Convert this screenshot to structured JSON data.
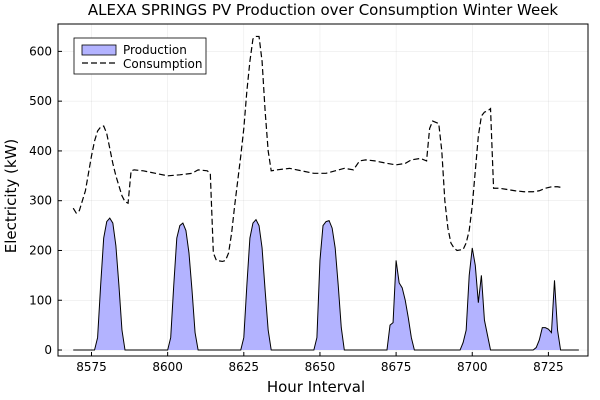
{
  "chart_data": {
    "type": "area",
    "title": "ALEXA SPRINGS PV Production over Consumption Winter Week",
    "xlabel": "Hour Interval",
    "ylabel": "Electricity (kW)",
    "xlim": [
      8564,
      8738
    ],
    "ylim": [
      -12,
      655
    ],
    "xticks": [
      8575,
      8600,
      8625,
      8650,
      8675,
      8700,
      8725
    ],
    "yticks": [
      0,
      100,
      200,
      300,
      400,
      500,
      600
    ],
    "grid": true,
    "legend_position": "top-left",
    "series": [
      {
        "name": "Production",
        "style": "filled-area",
        "color": "#b3b3ff",
        "points": [
          [
            8569,
            0
          ],
          [
            8576,
            0
          ],
          [
            8577,
            25
          ],
          [
            8578,
            130
          ],
          [
            8579,
            225
          ],
          [
            8580,
            258
          ],
          [
            8581,
            265
          ],
          [
            8582,
            255
          ],
          [
            8583,
            210
          ],
          [
            8584,
            130
          ],
          [
            8585,
            40
          ],
          [
            8586,
            0
          ],
          [
            8600,
            0
          ],
          [
            8601,
            25
          ],
          [
            8602,
            130
          ],
          [
            8603,
            225
          ],
          [
            8604,
            250
          ],
          [
            8605,
            255
          ],
          [
            8606,
            240
          ],
          [
            8607,
            195
          ],
          [
            8608,
            120
          ],
          [
            8609,
            35
          ],
          [
            8610,
            0
          ],
          [
            8624,
            0
          ],
          [
            8625,
            25
          ],
          [
            8626,
            130
          ],
          [
            8627,
            225
          ],
          [
            8628,
            255
          ],
          [
            8629,
            262
          ],
          [
            8630,
            250
          ],
          [
            8631,
            205
          ],
          [
            8632,
            120
          ],
          [
            8633,
            40
          ],
          [
            8634,
            0
          ],
          [
            8648,
            0
          ],
          [
            8649,
            25
          ],
          [
            8650,
            180
          ],
          [
            8651,
            250
          ],
          [
            8652,
            258
          ],
          [
            8653,
            260
          ],
          [
            8654,
            245
          ],
          [
            8655,
            205
          ],
          [
            8656,
            130
          ],
          [
            8657,
            45
          ],
          [
            8658,
            0
          ],
          [
            8672,
            0
          ],
          [
            8673,
            50
          ],
          [
            8674,
            55
          ],
          [
            8675,
            180
          ],
          [
            8676,
            135
          ],
          [
            8677,
            125
          ],
          [
            8678,
            100
          ],
          [
            8679,
            65
          ],
          [
            8680,
            25
          ],
          [
            8681,
            0
          ],
          [
            8696,
            0
          ],
          [
            8697,
            15
          ],
          [
            8698,
            40
          ],
          [
            8699,
            150
          ],
          [
            8700,
            205
          ],
          [
            8701,
            170
          ],
          [
            8702,
            95
          ],
          [
            8703,
            150
          ],
          [
            8704,
            60
          ],
          [
            8705,
            30
          ],
          [
            8706,
            0
          ],
          [
            8720,
            0
          ],
          [
            8721,
            5
          ],
          [
            8722,
            20
          ],
          [
            8723,
            45
          ],
          [
            8724,
            45
          ],
          [
            8725,
            42
          ],
          [
            8726,
            35
          ],
          [
            8727,
            140
          ],
          [
            8728,
            40
          ],
          [
            8729,
            0
          ],
          [
            8735,
            0
          ]
        ]
      },
      {
        "name": "Consumption",
        "style": "dashed-line",
        "color": "#000000",
        "points": [
          [
            8569,
            285
          ],
          [
            8570,
            275
          ],
          [
            8571,
            280
          ],
          [
            8572,
            300
          ],
          [
            8573,
            320
          ],
          [
            8574,
            355
          ],
          [
            8575,
            390
          ],
          [
            8576,
            420
          ],
          [
            8577,
            440
          ],
          [
            8578,
            448
          ],
          [
            8579,
            450
          ],
          [
            8580,
            435
          ],
          [
            8581,
            405
          ],
          [
            8582,
            375
          ],
          [
            8583,
            350
          ],
          [
            8584,
            330
          ],
          [
            8585,
            310
          ],
          [
            8586,
            298
          ],
          [
            8587,
            295
          ],
          [
            8588,
            360
          ],
          [
            8589,
            362
          ],
          [
            8592,
            360
          ],
          [
            8596,
            355
          ],
          [
            8600,
            350
          ],
          [
            8604,
            352
          ],
          [
            8608,
            355
          ],
          [
            8610,
            362
          ],
          [
            8613,
            360
          ],
          [
            8614,
            355
          ],
          [
            8615,
            195
          ],
          [
            8616,
            180
          ],
          [
            8618,
            178
          ],
          [
            8619,
            180
          ],
          [
            8620,
            195
          ],
          [
            8621,
            235
          ],
          [
            8622,
            290
          ],
          [
            8623,
            340
          ],
          [
            8624,
            390
          ],
          [
            8625,
            445
          ],
          [
            8626,
            520
          ],
          [
            8627,
            580
          ],
          [
            8628,
            625
          ],
          [
            8629,
            630
          ],
          [
            8630,
            630
          ],
          [
            8631,
            580
          ],
          [
            8632,
            480
          ],
          [
            8633,
            400
          ],
          [
            8634,
            360
          ],
          [
            8636,
            362
          ],
          [
            8640,
            365
          ],
          [
            8644,
            360
          ],
          [
            8648,
            355
          ],
          [
            8652,
            355
          ],
          [
            8655,
            360
          ],
          [
            8658,
            365
          ],
          [
            8661,
            362
          ],
          [
            8663,
            380
          ],
          [
            8665,
            382
          ],
          [
            8668,
            380
          ],
          [
            8672,
            375
          ],
          [
            8675,
            372
          ],
          [
            8678,
            375
          ],
          [
            8680,
            382
          ],
          [
            8683,
            385
          ],
          [
            8685,
            380
          ],
          [
            8686,
            445
          ],
          [
            8687,
            460
          ],
          [
            8689,
            455
          ],
          [
            8690,
            400
          ],
          [
            8691,
            300
          ],
          [
            8692,
            245
          ],
          [
            8693,
            215
          ],
          [
            8694,
            205
          ],
          [
            8695,
            200
          ],
          [
            8697,
            202
          ],
          [
            8698,
            215
          ],
          [
            8699,
            240
          ],
          [
            8700,
            290
          ],
          [
            8701,
            360
          ],
          [
            8702,
            430
          ],
          [
            8703,
            470
          ],
          [
            8704,
            478
          ],
          [
            8705,
            480
          ],
          [
            8706,
            485
          ],
          [
            8707,
            325
          ],
          [
            8709,
            325
          ],
          [
            8711,
            323
          ],
          [
            8714,
            320
          ],
          [
            8717,
            318
          ],
          [
            8720,
            318
          ],
          [
            8722,
            320
          ],
          [
            8724,
            325
          ],
          [
            8726,
            328
          ],
          [
            8728,
            328
          ],
          [
            8729,
            327
          ]
        ]
      }
    ]
  }
}
